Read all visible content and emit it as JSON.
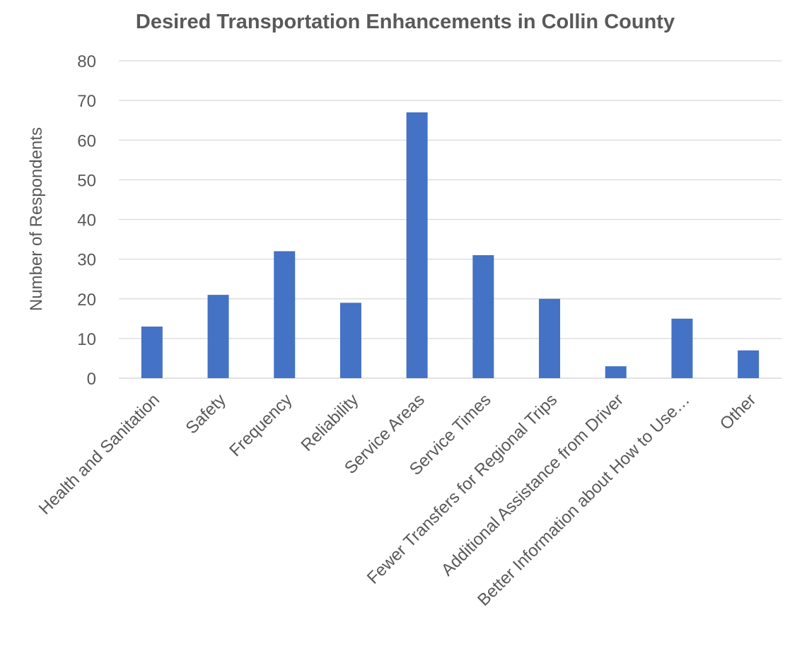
{
  "chart_data": {
    "type": "bar",
    "title": "Desired Transportation Enhancements in Collin County",
    "xlabel": "",
    "ylabel": "Number of Respondents",
    "ylim": [
      0,
      80
    ],
    "yticks": [
      0,
      10,
      20,
      30,
      40,
      50,
      60,
      70,
      80
    ],
    "grid": true,
    "legend": "none",
    "bar_color": "#4472C4",
    "categories": [
      "Health and Sanitation",
      "Safety",
      "Frequency",
      "Reliability",
      "Service Areas",
      "Service Times",
      "Fewer Transfers for Regional Trips",
      "Additional Assistance from Driver",
      "Better Information about How to Use…",
      "Other"
    ],
    "values": [
      13,
      21,
      32,
      19,
      67,
      31,
      20,
      3,
      15,
      7
    ]
  }
}
